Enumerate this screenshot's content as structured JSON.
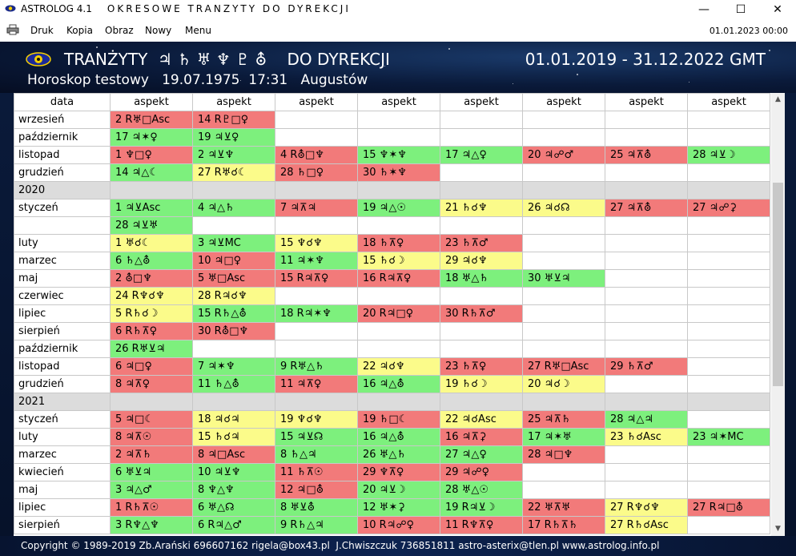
{
  "window": {
    "app_name": "ASTROLOG 4.1",
    "title": "OKRESOWE TRANZYTY DO DYREKCJI",
    "controls": [
      "—",
      "☐",
      "✕"
    ]
  },
  "menu": {
    "items": [
      "Druk",
      "Kopia",
      "Obraz",
      "Nowy",
      "Menu"
    ],
    "datetime": "01.01.2023  00:00"
  },
  "header": {
    "title": "TRANŻYTY  ♃ ♄ ♅ ♆ ♇ ⛢    DO DYREKCJI",
    "range": "01.01.2019 - 31.12.2022 GMT",
    "subtitle": "Horoskop testowy   19.07.1975  17:31   Augustów"
  },
  "table": {
    "headers": [
      "data",
      "aspekt",
      "aspekt",
      "aspekt",
      "aspekt",
      "aspekt",
      "aspekt",
      "aspekt",
      "aspekt"
    ],
    "rows": [
      {
        "label": "wrzesień",
        "cells": [
          [
            "2 R♅□Asc",
            "r"
          ],
          [
            "14 R♇□♀",
            "r"
          ],
          [
            "",
            ""
          ],
          [
            "",
            ""
          ],
          [
            "",
            ""
          ],
          [
            "",
            ""
          ],
          [
            "",
            ""
          ],
          [
            "",
            ""
          ]
        ]
      },
      {
        "label": "październik",
        "cells": [
          [
            "17 ♃✶♀",
            "g"
          ],
          [
            "19 ♃⊻♀",
            "g"
          ],
          [
            "",
            ""
          ],
          [
            "",
            ""
          ],
          [
            "",
            ""
          ],
          [
            "",
            ""
          ],
          [
            "",
            ""
          ],
          [
            "",
            ""
          ]
        ]
      },
      {
        "label": "listopad",
        "cells": [
          [
            "1 ♆□♀",
            "r"
          ],
          [
            "2 ♃⊻♆",
            "g"
          ],
          [
            "4 R⛢□♆",
            "r"
          ],
          [
            "15 ♆✶♆",
            "g"
          ],
          [
            "17 ♃△♀",
            "g"
          ],
          [
            "20 ♃☍♂",
            "r"
          ],
          [
            "25 ♃⊼⛢",
            "r"
          ],
          [
            "28 ♃⊻☽",
            "g"
          ]
        ]
      },
      {
        "label": "grudzień",
        "cells": [
          [
            "14 ♃△☾",
            "g"
          ],
          [
            "27 R♅☌☾",
            "y"
          ],
          [
            "28 ♄□♀",
            "r"
          ],
          [
            "30 ♄✶♆",
            "r"
          ],
          [
            "",
            ""
          ],
          [
            "",
            ""
          ],
          [
            "",
            ""
          ],
          [
            "",
            ""
          ]
        ]
      },
      {
        "label": "2020",
        "year": true,
        "cells": []
      },
      {
        "label": "styczeń",
        "cells": [
          [
            "1 ♃⊻Asc",
            "g"
          ],
          [
            "4 ♃△♄",
            "g"
          ],
          [
            "7 ♃⊼♃",
            "r"
          ],
          [
            "19 ♃△☉",
            "g"
          ],
          [
            "21 ♄☌♆",
            "y"
          ],
          [
            "26 ♃☌☊",
            "y"
          ],
          [
            "27 ♃⊼⛢",
            "r"
          ],
          [
            "27 ♃☍⚳",
            "r"
          ]
        ]
      },
      {
        "label": "",
        "cells": [
          [
            "28 ♃⊻♅",
            "g"
          ],
          [
            "",
            ""
          ],
          [
            "",
            ""
          ],
          [
            "",
            ""
          ],
          [
            "",
            ""
          ],
          [
            "",
            ""
          ],
          [
            "",
            ""
          ],
          [
            "",
            ""
          ]
        ]
      },
      {
        "label": "luty",
        "cells": [
          [
            "1 ♅☌☾",
            "y"
          ],
          [
            "3 ♃⊻MC",
            "g"
          ],
          [
            "15 ♆☌♆",
            "y"
          ],
          [
            "18 ♄⊼♀",
            "r"
          ],
          [
            "23 ♄⊼♂",
            "r"
          ],
          [
            "",
            ""
          ],
          [
            "",
            ""
          ],
          [
            "",
            ""
          ]
        ]
      },
      {
        "label": "marzec",
        "cells": [
          [
            "6 ♄△⛢",
            "g"
          ],
          [
            "10 ♃□♀",
            "r"
          ],
          [
            "11 ♃✶♆",
            "g"
          ],
          [
            "15 ♄☌☽",
            "y"
          ],
          [
            "29 ♃☌♆",
            "y"
          ],
          [
            "",
            ""
          ],
          [
            "",
            ""
          ],
          [
            "",
            ""
          ]
        ]
      },
      {
        "label": "maj",
        "cells": [
          [
            "2 ⛢□♆",
            "r"
          ],
          [
            "5 ♅□Asc",
            "r"
          ],
          [
            "15 R♃⊼♀",
            "r"
          ],
          [
            "16 R♃⊼♀",
            "r"
          ],
          [
            "18 ♅△♄",
            "g"
          ],
          [
            "30 ♅⊻♃",
            "g"
          ],
          [
            "",
            ""
          ],
          [
            "",
            ""
          ]
        ]
      },
      {
        "label": "czerwiec",
        "cells": [
          [
            "24 R♆☌♆",
            "y"
          ],
          [
            "28 R♃☌♆",
            "y"
          ],
          [
            "",
            ""
          ],
          [
            "",
            ""
          ],
          [
            "",
            ""
          ],
          [
            "",
            ""
          ],
          [
            "",
            ""
          ],
          [
            "",
            ""
          ]
        ]
      },
      {
        "label": "lipiec",
        "cells": [
          [
            "5 R♄☌☽",
            "y"
          ],
          [
            "15 R♄△⛢",
            "g"
          ],
          [
            "18 R♃✶♆",
            "g"
          ],
          [
            "20 R♃□♀",
            "r"
          ],
          [
            "30 R♄⊼♂",
            "r"
          ],
          [
            "",
            ""
          ],
          [
            "",
            ""
          ],
          [
            "",
            ""
          ]
        ]
      },
      {
        "label": "sierpień",
        "cells": [
          [
            "6 R♄⊼♀",
            "r"
          ],
          [
            "30 R⛢□♆",
            "r"
          ],
          [
            "",
            ""
          ],
          [
            "",
            ""
          ],
          [
            "",
            ""
          ],
          [
            "",
            ""
          ],
          [
            "",
            ""
          ],
          [
            "",
            ""
          ]
        ]
      },
      {
        "label": "październik",
        "cells": [
          [
            "26 R♅⊻♃",
            "g"
          ],
          [
            "",
            ""
          ],
          [
            "",
            ""
          ],
          [
            "",
            ""
          ],
          [
            "",
            ""
          ],
          [
            "",
            ""
          ],
          [
            "",
            ""
          ],
          [
            "",
            ""
          ]
        ]
      },
      {
        "label": "listopad",
        "cells": [
          [
            "6 ♃□♀",
            "r"
          ],
          [
            "7 ♃✶♆",
            "g"
          ],
          [
            "9 R♅△♄",
            "g"
          ],
          [
            "22 ♃☌♆",
            "y"
          ],
          [
            "23 ♄⊼♀",
            "r"
          ],
          [
            "27 R♅□Asc",
            "r"
          ],
          [
            "29 ♄⊼♂",
            "r"
          ],
          [
            "",
            ""
          ]
        ]
      },
      {
        "label": "grudzień",
        "cells": [
          [
            "8 ♃⊼♀",
            "r"
          ],
          [
            "11 ♄△⛢",
            "g"
          ],
          [
            "11 ♃⊼♀",
            "r"
          ],
          [
            "16 ♃△⛢",
            "g"
          ],
          [
            "19 ♄☌☽",
            "y"
          ],
          [
            "20 ♃☌☽",
            "y"
          ],
          [
            "",
            ""
          ],
          [
            "",
            ""
          ]
        ]
      },
      {
        "label": "2021",
        "year": true,
        "cells": []
      },
      {
        "label": "styczeń",
        "cells": [
          [
            "5 ♃□☾",
            "r"
          ],
          [
            "18 ♃☌♃",
            "y"
          ],
          [
            "19 ♆☌♆",
            "y"
          ],
          [
            "19 ♄□☾",
            "r"
          ],
          [
            "22 ♃☌Asc",
            "y"
          ],
          [
            "25 ♃⊼♄",
            "r"
          ],
          [
            "28 ♃△♃",
            "g"
          ],
          [
            "",
            ""
          ]
        ]
      },
      {
        "label": "luty",
        "cells": [
          [
            "8 ♃⊼☉",
            "r"
          ],
          [
            "15 ♄☌♃",
            "y"
          ],
          [
            "15 ♃⊻☊",
            "g"
          ],
          [
            "16 ♃△⛢",
            "g"
          ],
          [
            "16 ♃⊼⚳",
            "r"
          ],
          [
            "17 ♃✶♅",
            "g"
          ],
          [
            "23 ♄☌Asc",
            "y"
          ],
          [
            "23 ♃✶MC",
            "g"
          ]
        ]
      },
      {
        "label": "marzec",
        "cells": [
          [
            "2 ♃⊼♄",
            "r"
          ],
          [
            "8 ♃□Asc",
            "r"
          ],
          [
            "8 ♄△♃",
            "g"
          ],
          [
            "26 ♅△♄",
            "g"
          ],
          [
            "27 ♃△♀",
            "g"
          ],
          [
            "28 ♃□♆",
            "r"
          ],
          [
            "",
            ""
          ],
          [
            "",
            ""
          ]
        ]
      },
      {
        "label": "kwiecień",
        "cells": [
          [
            "6 ♅⊻♃",
            "g"
          ],
          [
            "10 ♃⊻♆",
            "g"
          ],
          [
            "11 ♄⊼☉",
            "r"
          ],
          [
            "29 ♆⊼♀",
            "r"
          ],
          [
            "29 ♃☍♀",
            "r"
          ],
          [
            "",
            ""
          ],
          [
            "",
            ""
          ],
          [
            "",
            ""
          ]
        ]
      },
      {
        "label": "maj",
        "cells": [
          [
            "3 ♃△♂",
            "g"
          ],
          [
            "8 ♆△♆",
            "g"
          ],
          [
            "12 ♃□⛢",
            "r"
          ],
          [
            "20 ♃⊻☽",
            "g"
          ],
          [
            "28 ♅△☉",
            "g"
          ],
          [
            "",
            ""
          ],
          [
            "",
            ""
          ],
          [
            "",
            ""
          ]
        ]
      },
      {
        "label": "lipiec",
        "cells": [
          [
            "1 R♄⊼☉",
            "r"
          ],
          [
            "6 ♅△☊",
            "g"
          ],
          [
            "8 ♅⊻⛢",
            "g"
          ],
          [
            "12 ♅✶⚳",
            "g"
          ],
          [
            "19 R♃⊻☽",
            "g"
          ],
          [
            "22 ♅⊼♅",
            "r"
          ],
          [
            "27 R♆☌♆",
            "y"
          ],
          [
            "27 R♃□⛢",
            "r"
          ]
        ]
      },
      {
        "label": "sierpień",
        "cells": [
          [
            "3 R♆△♆",
            "g"
          ],
          [
            "6 R♃△♂",
            "g"
          ],
          [
            "9 R♄△♃",
            "g"
          ],
          [
            "10 R♃☍♀",
            "r"
          ],
          [
            "11 R♆⊼♀",
            "r"
          ],
          [
            "17 R♄⊼♄",
            "r"
          ],
          [
            "27 R♄☌Asc",
            "y"
          ],
          [
            "",
            ""
          ]
        ]
      }
    ]
  },
  "footer": {
    "text": "Copyright © 1989-2019 Zb.Arański 696607162 rigela@box43.pl  J.Chwiszczuk 736851811 astro-asterix@tlen.pl www.astrolog.info.pl"
  },
  "colors": {
    "green": "#7df07d",
    "red": "#f27a7a",
    "yellow": "#fbfb8a",
    "year_row": "#dcdcdc",
    "header_bg": "#0a1a3a"
  }
}
